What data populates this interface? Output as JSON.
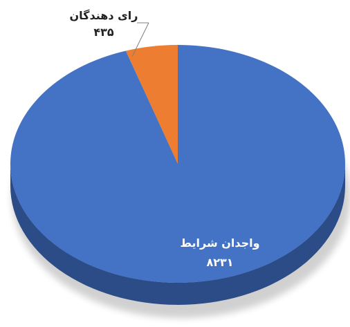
{
  "chart_data": {
    "type": "pie",
    "categories": [
      "واجدان شرایط",
      "رای دهندگان"
    ],
    "values": [
      8231,
      435
    ],
    "value_labels": [
      "۸۲۳۱",
      "۴۳۵"
    ],
    "colors": [
      "#4472C4",
      "#ED7D31"
    ],
    "side_colors": [
      "#2B4C86",
      "#B5561A"
    ],
    "style": "3d",
    "legend": "none"
  }
}
